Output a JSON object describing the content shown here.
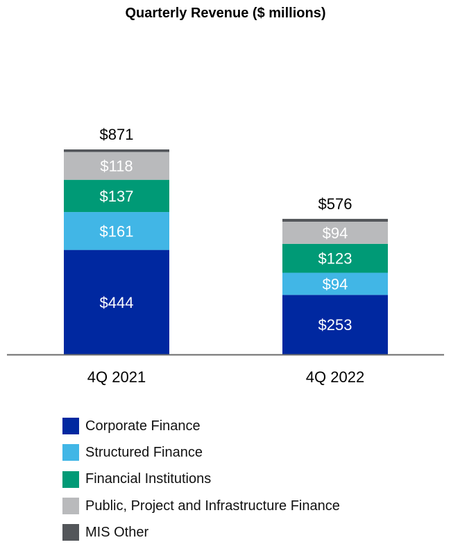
{
  "chart_data": {
    "type": "bar",
    "stacked": true,
    "title": "Quarterly Revenue ($ millions)",
    "categories": [
      "4Q 2021",
      "4Q 2022"
    ],
    "totals": [
      871,
      576
    ],
    "total_labels": [
      "$871",
      "$576"
    ],
    "series": [
      {
        "name": "Corporate Finance",
        "color": "#0028a0",
        "values": [
          444,
          253
        ],
        "labels": [
          "$444",
          "$253"
        ]
      },
      {
        "name": "Structured Finance",
        "color": "#41b6e6",
        "values": [
          161,
          94
        ],
        "labels": [
          "$161",
          "$94"
        ]
      },
      {
        "name": "Financial Institutions",
        "color": "#009a76",
        "values": [
          137,
          123
        ],
        "labels": [
          "$137",
          "$123"
        ]
      },
      {
        "name": "Public, Project and Infrastructure Finance",
        "color": "#b9babc",
        "values": [
          118,
          94
        ],
        "labels": [
          "$118",
          "$94"
        ]
      },
      {
        "name": "MIS Other",
        "color": "#53565a",
        "values": [
          11,
          12
        ],
        "labels": [
          "",
          ""
        ]
      }
    ],
    "xlabel": "",
    "ylabel": "",
    "ylim": [
      0,
      871
    ],
    "grid": false,
    "legend_position": "bottom"
  }
}
